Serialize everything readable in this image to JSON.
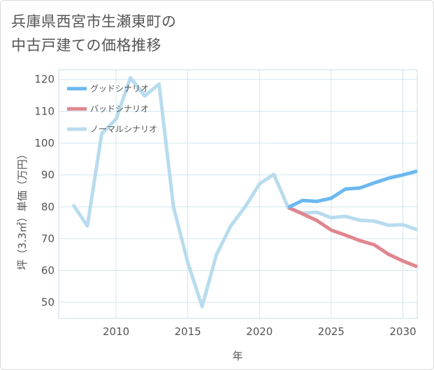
{
  "title": {
    "line1": "兵庫県西宮市生瀬東町の",
    "line2": "中古戸建ての価格推移"
  },
  "chart_data": {
    "type": "line",
    "xlabel": "年",
    "ylabel": "坪（3.3㎡）単価（万円）",
    "xlim": [
      2006,
      2031
    ],
    "ylim": [
      45,
      123
    ],
    "x_ticks": [
      2010,
      2015,
      2020,
      2025,
      2030
    ],
    "y_ticks": [
      50,
      60,
      70,
      80,
      90,
      100,
      110,
      120
    ],
    "grid": true,
    "legend_position": "top-left",
    "series": [
      {
        "name": "グッドシナリオ",
        "color": "#6cb8ef",
        "x": [
          2022,
          2023,
          2024,
          2025,
          2026,
          2027,
          2028,
          2029,
          2030,
          2031
        ],
        "y": [
          79.8,
          82.0,
          81.7,
          82.7,
          85.6,
          85.9,
          87.5,
          89.0,
          90.0,
          91.2
        ]
      },
      {
        "name": "バッドシナリオ",
        "color": "#e0868f",
        "x": [
          2022,
          2023,
          2024,
          2025,
          2026,
          2027,
          2028,
          2029,
          2030,
          2031
        ],
        "y": [
          79.8,
          77.8,
          75.7,
          72.7,
          71.1,
          69.4,
          68.1,
          65.1,
          63.0,
          61.2
        ]
      },
      {
        "name": "ノーマルシナリオ",
        "color": "#b8dcee",
        "x": [
          2007,
          2008,
          2009,
          2010,
          2011,
          2012,
          2013,
          2014,
          2015,
          2016,
          2017,
          2018,
          2019,
          2020,
          2021,
          2022,
          2023,
          2024,
          2025,
          2026,
          2027,
          2028,
          2029,
          2030,
          2031
        ],
        "y": [
          80.7,
          74.0,
          103.0,
          107.5,
          120.5,
          114.8,
          118.5,
          80.0,
          62.5,
          48.7,
          65.0,
          74.0,
          80.0,
          87.2,
          90.2,
          79.8,
          78.0,
          78.3,
          76.6,
          77.0,
          75.8,
          75.5,
          74.2,
          74.4,
          72.8
        ]
      }
    ]
  }
}
